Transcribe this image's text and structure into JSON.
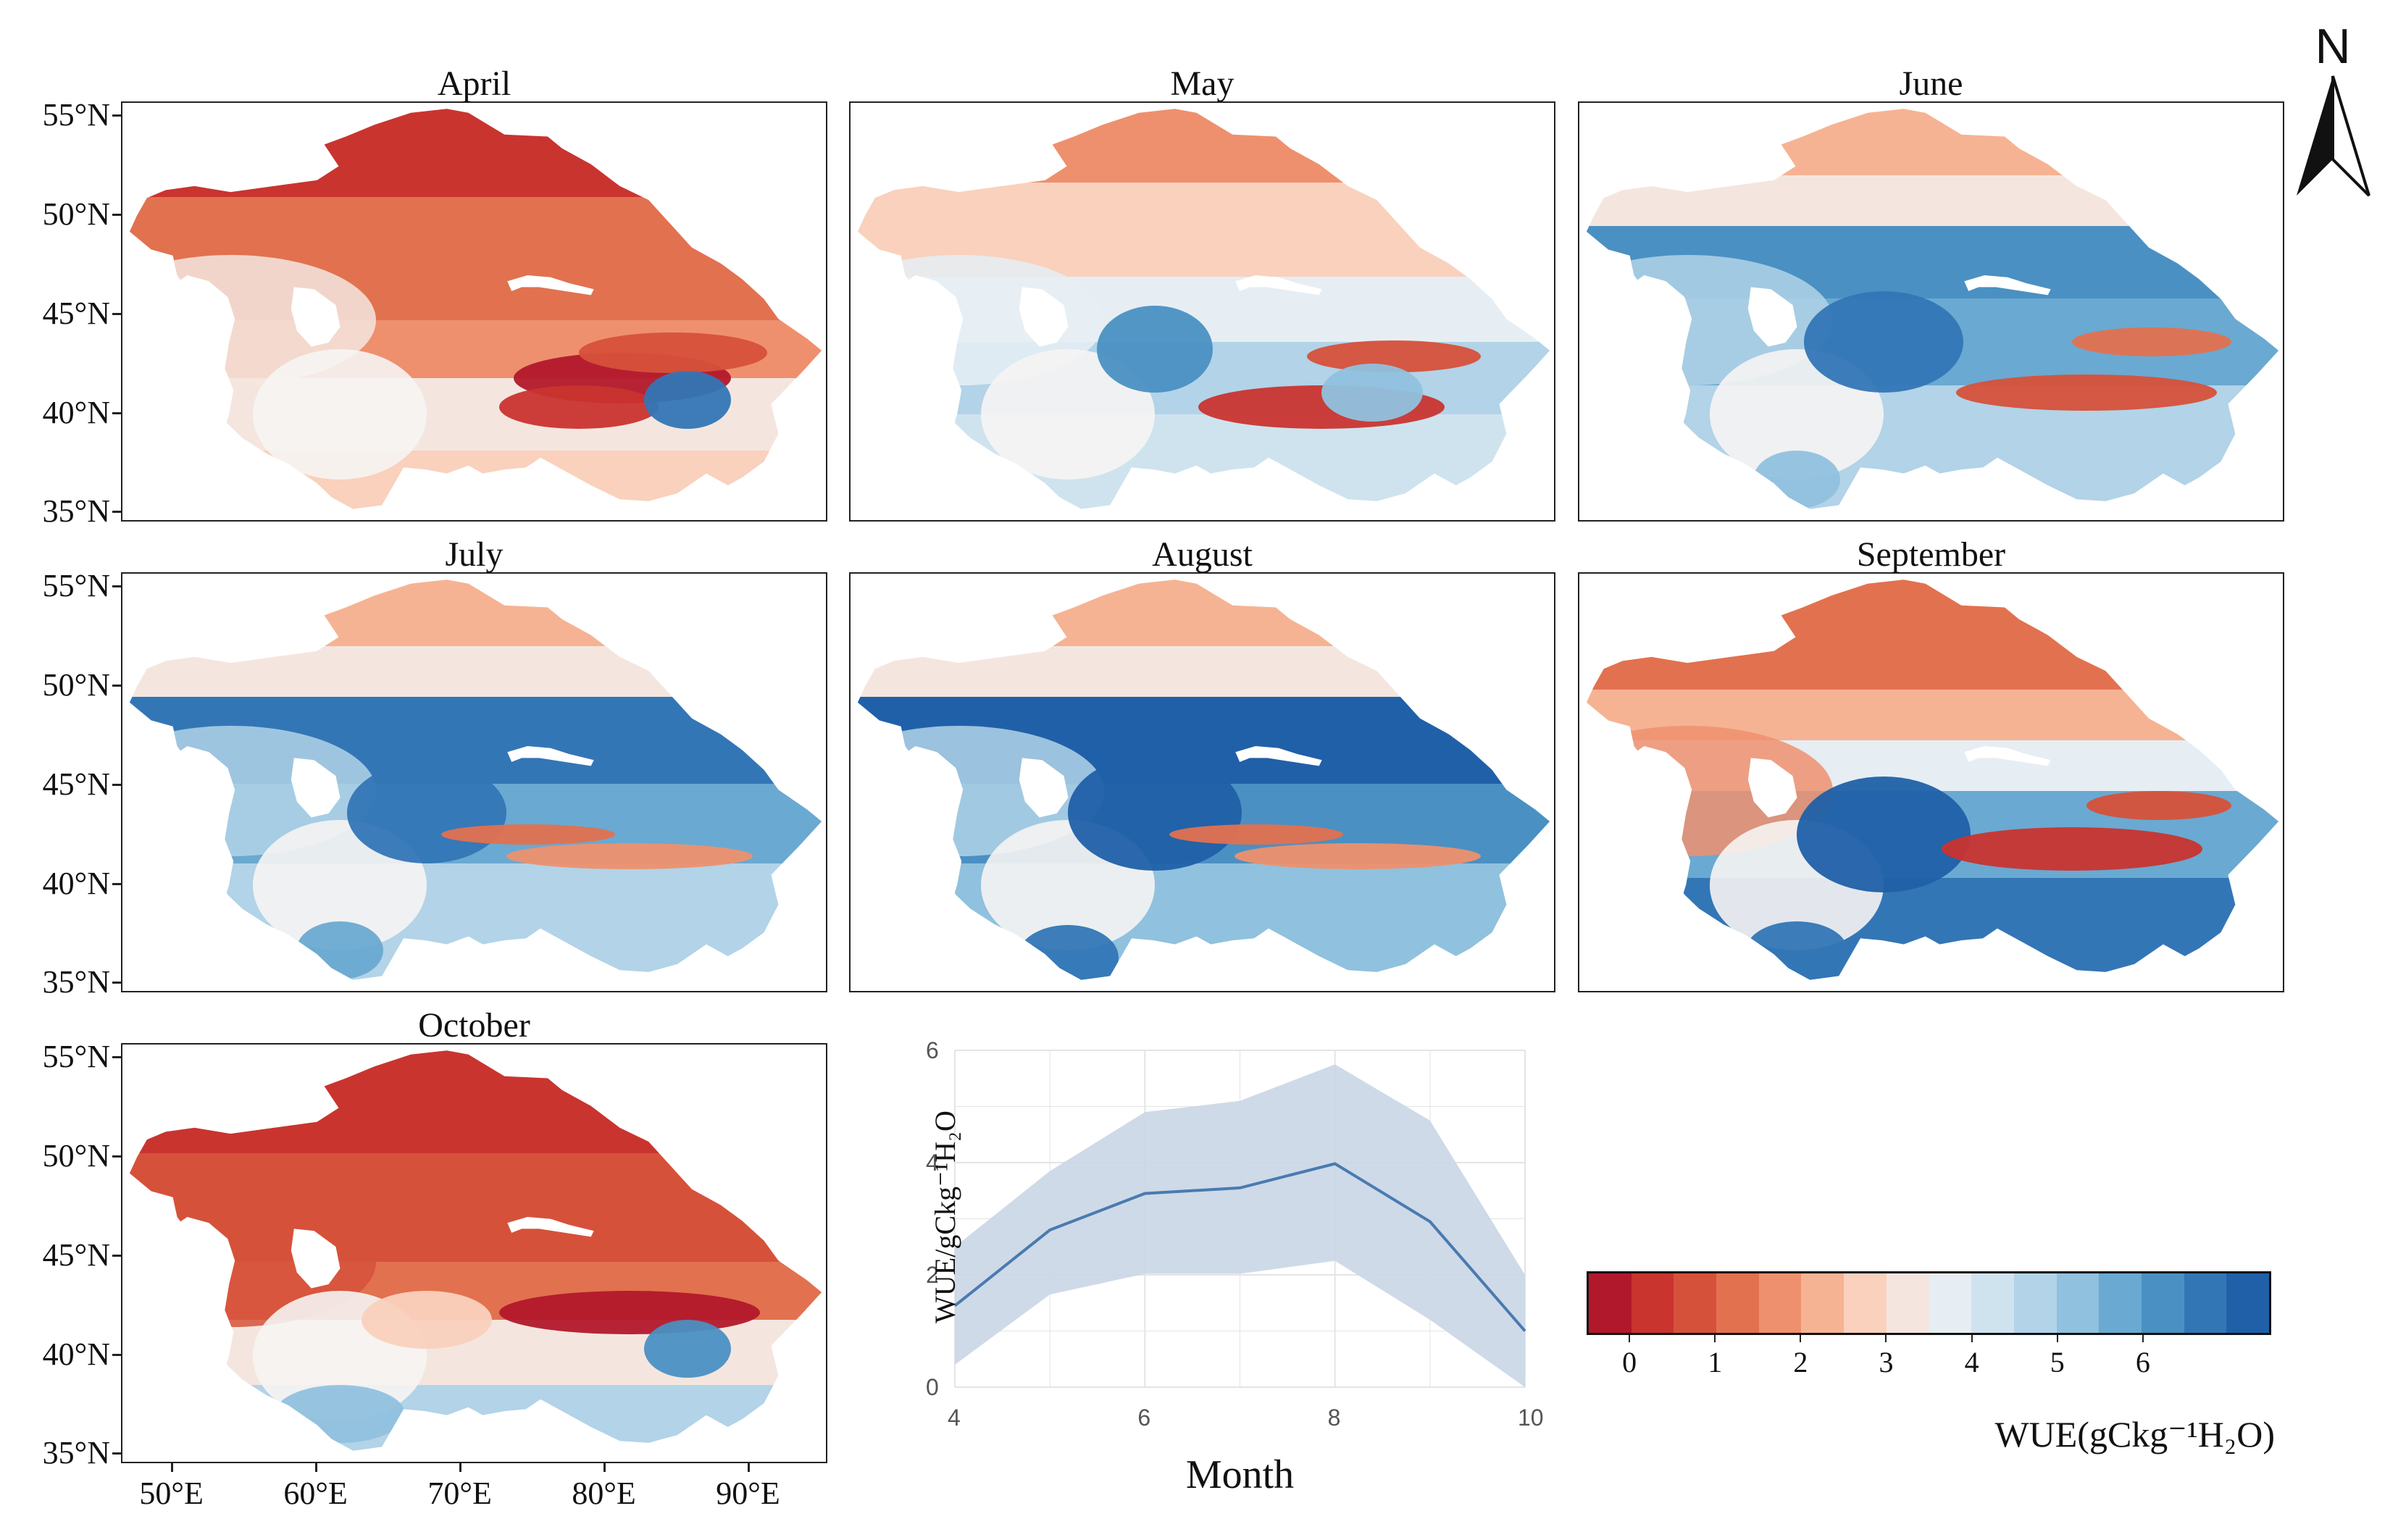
{
  "panels": [
    {
      "title": "April",
      "profile": "april"
    },
    {
      "title": "May",
      "profile": "may"
    },
    {
      "title": "June",
      "profile": "june"
    },
    {
      "title": "July",
      "profile": "july"
    },
    {
      "title": "August",
      "profile": "august"
    },
    {
      "title": "September",
      "profile": "september"
    },
    {
      "title": "October",
      "profile": "october"
    }
  ],
  "latitude_labels": [
    "55°N",
    "50°N",
    "45°N",
    "40°N",
    "35°N"
  ],
  "longitude_labels": [
    "50°E",
    "60°E",
    "70°E",
    "80°E",
    "90°E"
  ],
  "north_arrow": {
    "label": "N"
  },
  "colorbar": {
    "label": "WUE(gCkg⁻¹H₂O)",
    "colors": [
      "#b2182b",
      "#c9342f",
      "#d6513a",
      "#e2714f",
      "#ee906e",
      "#f5b393",
      "#f9d1bd",
      "#f4e6df",
      "#e6eef3",
      "#cfe3ef",
      "#b2d3e8",
      "#90c1de",
      "#6aa9d1",
      "#4a90c3",
      "#3376b6",
      "#2060a8"
    ],
    "ticks": [
      "0",
      "1",
      "2",
      "3",
      "4",
      "5",
      "6"
    ]
  },
  "chart_data": {
    "type": "line",
    "x": [
      4,
      5,
      6,
      7,
      8,
      9,
      10
    ],
    "y": [
      1.45,
      2.8,
      3.45,
      3.55,
      3.98,
      2.95,
      1.0
    ],
    "y_lower": [
      0.4,
      1.65,
      2.02,
      2.02,
      2.25,
      1.2,
      0.0
    ],
    "y_upper": [
      2.5,
      3.85,
      4.9,
      5.1,
      5.75,
      4.75,
      2.0
    ],
    "xlabel": "Month",
    "ylabel": "WUE/gCkg⁻¹H₂O",
    "xlim": [
      4,
      10
    ],
    "ylim": [
      0,
      6
    ],
    "xticks": [
      "4",
      "6",
      "8",
      "10"
    ],
    "yticks": [
      "0",
      "2",
      "4",
      "6"
    ],
    "line_color": "#4a7ab0",
    "band_color": "#c9d6e6",
    "grid": true
  }
}
